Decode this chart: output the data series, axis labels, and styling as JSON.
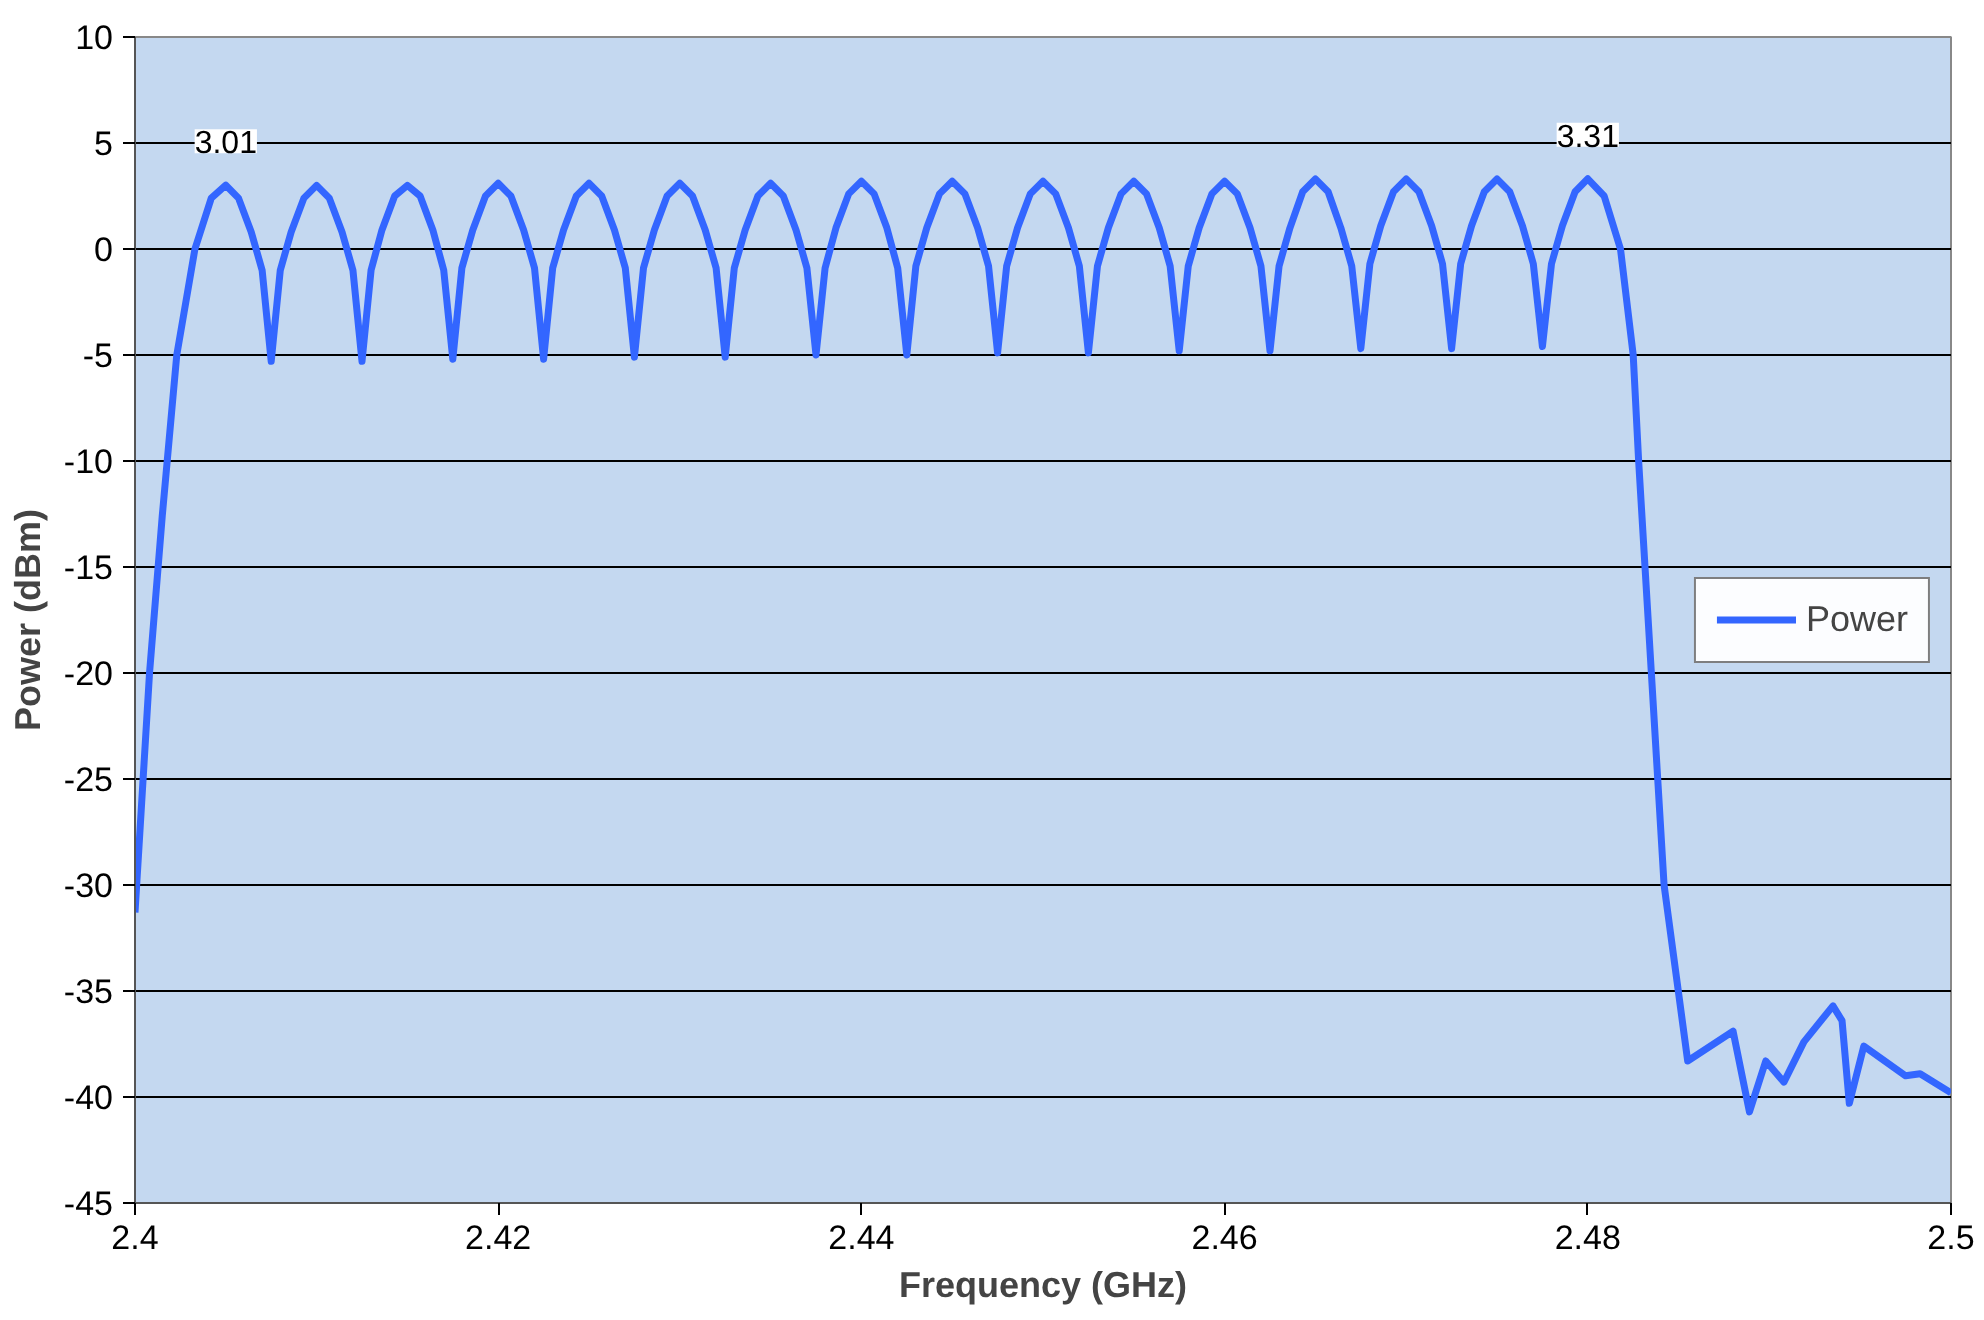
{
  "chart_data": {
    "type": "line",
    "xlabel": "Frequency (GHz)",
    "ylabel": "Power (dBm)",
    "xlim": [
      2.4,
      2.5
    ],
    "ylim": [
      -45,
      10
    ],
    "xticks": [
      2.4,
      2.42,
      2.44,
      2.46,
      2.48,
      2.5
    ],
    "yticks": [
      -45,
      -40,
      -35,
      -30,
      -25,
      -20,
      -15,
      -10,
      -5,
      0,
      5,
      10
    ],
    "grid": "y",
    "legend": "right",
    "marker": "none",
    "line_style": "solid",
    "annotations": [
      {
        "text": "3.01",
        "x": 2.405,
        "y": 3.01
      },
      {
        "text": "3.31",
        "x": 2.48,
        "y": 3.31
      }
    ],
    "series": [
      {
        "name": "Power",
        "color": "#3366ff",
        "x": [
          2.4,
          2.4008,
          2.4015,
          2.4023,
          2.4033,
          2.4042,
          2.405,
          2.4057,
          2.4064,
          2.407,
          2.4075,
          2.408,
          2.4086,
          2.4093,
          2.41,
          2.4107,
          2.4114,
          2.412,
          2.4125,
          2.413,
          2.4136,
          2.4143,
          2.415,
          2.4157,
          2.4164,
          2.417,
          2.4175,
          2.418,
          2.4186,
          2.4193,
          2.42,
          2.4207,
          2.4214,
          2.422,
          2.4225,
          2.423,
          2.4236,
          2.4243,
          2.425,
          2.4257,
          2.4264,
          2.427,
          2.4275,
          2.428,
          2.4286,
          2.4293,
          2.43,
          2.4307,
          2.4314,
          2.432,
          2.4325,
          2.433,
          2.4336,
          2.4343,
          2.435,
          2.4357,
          2.4364,
          2.437,
          2.4375,
          2.438,
          2.4386,
          2.4393,
          2.44,
          2.4407,
          2.4414,
          2.442,
          2.4425,
          2.443,
          2.4436,
          2.4443,
          2.445,
          2.4457,
          2.4464,
          2.447,
          2.4475,
          2.448,
          2.4486,
          2.4493,
          2.45,
          2.4507,
          2.4514,
          2.452,
          2.4525,
          2.453,
          2.4536,
          2.4543,
          2.455,
          2.4557,
          2.4564,
          2.457,
          2.4575,
          2.458,
          2.4586,
          2.4593,
          2.46,
          2.4607,
          2.4614,
          2.462,
          2.4625,
          2.463,
          2.4636,
          2.4643,
          2.465,
          2.4657,
          2.4664,
          2.467,
          2.4675,
          2.468,
          2.4686,
          2.4693,
          2.47,
          2.4707,
          2.4714,
          2.472,
          2.4725,
          2.473,
          2.4736,
          2.4743,
          2.475,
          2.4757,
          2.4764,
          2.477,
          2.4775,
          2.478,
          2.4786,
          2.4793,
          2.48,
          2.4809,
          2.4818,
          2.4825,
          2.4828,
          2.4835,
          2.4842,
          2.4855,
          2.488,
          2.4889,
          2.4898,
          2.4908,
          2.4919,
          2.4935,
          2.494,
          2.4944,
          2.4952,
          2.4975,
          2.4983,
          2.5
        ],
        "values": [
          -31.3,
          -20,
          -12.6,
          -5,
          0,
          2.4,
          3.01,
          2.4,
          0.8,
          -1,
          -5.3,
          -1,
          0.8,
          2.4,
          3.0,
          2.4,
          0.8,
          -1,
          -5.3,
          -1,
          0.9,
          2.5,
          3.0,
          2.5,
          0.9,
          -1,
          -5.2,
          -0.9,
          0.9,
          2.5,
          3.1,
          2.5,
          0.9,
          -0.9,
          -5.2,
          -0.9,
          0.9,
          2.5,
          3.1,
          2.5,
          0.9,
          -0.9,
          -5.1,
          -0.9,
          0.9,
          2.5,
          3.1,
          2.5,
          0.9,
          -0.9,
          -5.1,
          -0.9,
          0.9,
          2.5,
          3.1,
          2.5,
          0.9,
          -0.9,
          -5,
          -0.9,
          1,
          2.6,
          3.2,
          2.6,
          1,
          -0.9,
          -5,
          -0.8,
          1,
          2.6,
          3.2,
          2.6,
          1,
          -0.8,
          -4.9,
          -0.8,
          1,
          2.6,
          3.2,
          2.6,
          1,
          -0.8,
          -4.9,
          -0.8,
          1,
          2.6,
          3.2,
          2.6,
          1,
          -0.8,
          -4.8,
          -0.8,
          1,
          2.6,
          3.2,
          2.6,
          1,
          -0.8,
          -4.8,
          -0.8,
          1,
          2.7,
          3.3,
          2.7,
          1,
          -0.8,
          -4.7,
          -0.7,
          1.1,
          2.7,
          3.3,
          2.7,
          1.1,
          -0.7,
          -4.7,
          -0.7,
          1.1,
          2.7,
          3.3,
          2.7,
          1.1,
          -0.7,
          -4.6,
          -0.7,
          1.1,
          2.7,
          3.31,
          2.5,
          0,
          -5,
          -10,
          -20,
          -30,
          -38.3,
          -36.9,
          -40.7,
          -38.3,
          -39.3,
          -37.4,
          -35.7,
          -36.4,
          -40.3,
          -37.6,
          -39,
          -38.9,
          -39.8
        ]
      }
    ]
  }
}
